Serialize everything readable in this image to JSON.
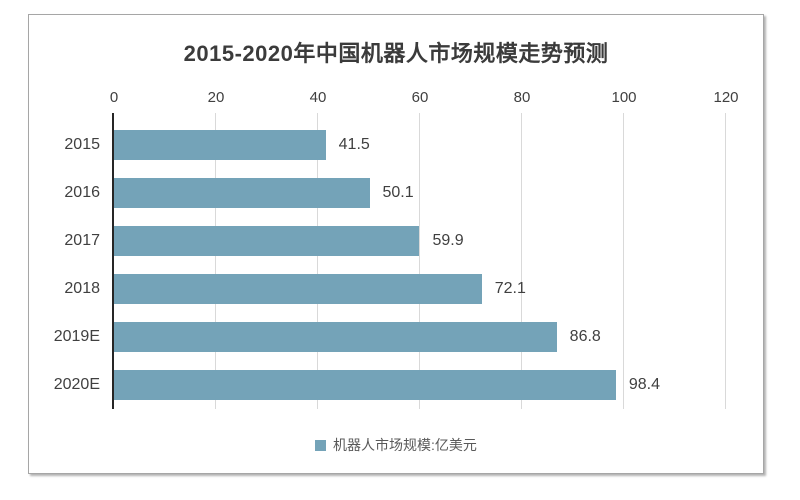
{
  "chart_data": {
    "type": "bar",
    "orientation": "horizontal",
    "title": "2015-2020年中国机器人市场规模走势预测",
    "categories": [
      "2015",
      "2016",
      "2017",
      "2018",
      "2019E",
      "2020E"
    ],
    "values": [
      41.5,
      50.1,
      59.9,
      72.1,
      86.8,
      98.4
    ],
    "value_labels": [
      "41.5",
      "50.1",
      "59.9",
      "72.1",
      "86.8",
      "98.4"
    ],
    "x_axis": {
      "position": "top",
      "min": 0,
      "max": 120,
      "ticks": [
        0,
        20,
        40,
        60,
        80,
        100,
        120
      ]
    },
    "legend": {
      "position": "bottom",
      "label": "机器人市场规模:亿美元"
    },
    "grid": true,
    "colors": {
      "bar": "#74a3b8",
      "legend_swatch": "#74a3b8",
      "gridline": "#d9d9d9",
      "axis_line": "#262626",
      "title_text": "#3b3b3b",
      "label_text": "#404040",
      "legend_text": "#595959",
      "frame_border": "#a6a6a6",
      "background": "#ffffff"
    }
  }
}
